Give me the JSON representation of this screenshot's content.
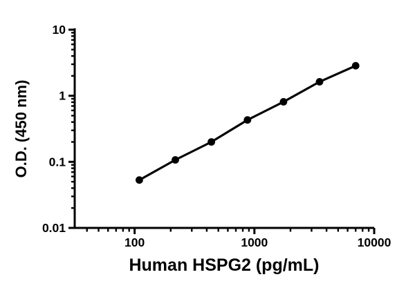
{
  "chart_data": {
    "type": "line",
    "title": "",
    "xlabel": "Human HSPG2 (pg/mL)",
    "ylabel": "O.D. (450 nm)",
    "x_scale": "log",
    "y_scale": "log",
    "xlim": [
      31.6,
      10000
    ],
    "ylim": [
      0.01,
      10
    ],
    "grid": false,
    "legend": "none",
    "marker": "filled-circle",
    "x": [
      109.4,
      218.8,
      437.5,
      875,
      1750,
      3500,
      7000
    ],
    "series": [
      {
        "name": "O.D. (450 nm)",
        "values": [
          0.053,
          0.107,
          0.2,
          0.43,
          0.81,
          1.63,
          2.85
        ]
      }
    ],
    "x_major_ticks": [
      {
        "value": 100,
        "label": "100"
      },
      {
        "value": 1000,
        "label": "1000"
      },
      {
        "value": 10000,
        "label": "10000"
      }
    ],
    "y_major_ticks": [
      {
        "value": 0.01,
        "label": "0.01"
      },
      {
        "value": 0.1,
        "label": "0.1"
      },
      {
        "value": 1,
        "label": "1"
      },
      {
        "value": 10,
        "label": "10"
      }
    ],
    "colors": {
      "line": "#000000",
      "marker": "#000000",
      "axis": "#000000",
      "text": "#000000",
      "background": "#ffffff"
    }
  }
}
